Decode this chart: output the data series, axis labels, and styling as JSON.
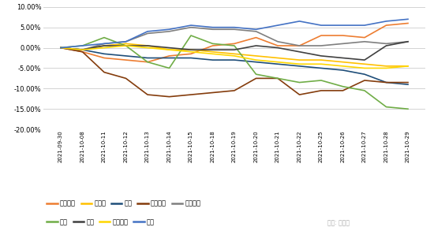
{
  "dates": [
    "2021-09-30",
    "2021-10-08",
    "2021-10-11",
    "2021-10-12",
    "2021-10-13",
    "2021-10-14",
    "2021-10-15",
    "2021-10-18",
    "2021-10-19",
    "2021-10-20",
    "2021-10-21",
    "2021-10-22",
    "2021-10-25",
    "2021-10-26",
    "2021-10-27",
    "2021-10-28",
    "2021-10-29"
  ],
  "series": [
    {
      "name": "电力设备",
      "color": "#ED7D31",
      "values": [
        0.0,
        -1.0,
        -2.5,
        -3.0,
        -3.5,
        -2.0,
        -1.5,
        0.5,
        1.0,
        2.5,
        0.5,
        0.5,
        3.0,
        3.0,
        2.5,
        5.5,
        6.0
      ]
    },
    {
      "name": "房地产",
      "color": "#FFC000",
      "values": [
        0.0,
        -0.5,
        0.5,
        1.0,
        0.5,
        -0.5,
        -0.5,
        -1.0,
        -1.5,
        -2.0,
        -2.5,
        -3.0,
        -3.0,
        -3.5,
        -4.0,
        -4.5,
        -4.5
      ]
    },
    {
      "name": "钢铁",
      "color": "#1F4E79",
      "values": [
        0.0,
        -0.5,
        -1.5,
        -2.0,
        -2.5,
        -2.5,
        -2.5,
        -3.0,
        -3.0,
        -3.5,
        -4.0,
        -4.5,
        -5.0,
        -5.5,
        -6.5,
        -8.5,
        -9.0
      ]
    },
    {
      "name": "公用事业",
      "color": "#843C0C",
      "values": [
        0.0,
        -1.0,
        -6.0,
        -7.5,
        -11.5,
        -12.0,
        -11.5,
        -11.0,
        -10.5,
        -7.5,
        -7.5,
        -11.5,
        -10.5,
        -10.5,
        -8.0,
        -8.5,
        -8.5
      ]
    },
    {
      "name": "国防军工",
      "color": "#7F7F7F",
      "values": [
        0.0,
        -0.5,
        1.0,
        1.5,
        3.5,
        4.0,
        5.0,
        4.5,
        4.5,
        4.0,
        1.5,
        0.5,
        0.5,
        1.0,
        1.5,
        1.0,
        1.5
      ]
    },
    {
      "name": "煤炭",
      "color": "#70AD47",
      "values": [
        0.0,
        0.5,
        2.5,
        0.5,
        -3.5,
        -5.0,
        3.0,
        1.0,
        0.5,
        -6.5,
        -7.5,
        -8.5,
        -8.0,
        -9.5,
        -10.5,
        -14.5,
        -15.0
      ]
    },
    {
      "name": "汽车",
      "color": "#404040",
      "values": [
        0.0,
        -0.5,
        0.5,
        0.5,
        0.5,
        0.0,
        -0.5,
        -0.5,
        -0.5,
        0.5,
        0.0,
        -1.0,
        -2.0,
        -2.5,
        -3.0,
        0.5,
        1.5
      ]
    },
    {
      "name": "医药生物",
      "color": "#FFD700",
      "values": [
        0.0,
        -0.5,
        0.0,
        0.5,
        0.0,
        -0.5,
        -1.0,
        -1.5,
        -2.0,
        -3.0,
        -3.5,
        -4.0,
        -4.0,
        -4.5,
        -5.0,
        -5.0,
        -4.5
      ]
    },
    {
      "name": "银行",
      "color": "#4472C4",
      "values": [
        0.0,
        0.5,
        1.0,
        1.5,
        4.0,
        4.5,
        5.5,
        5.0,
        5.0,
        4.5,
        5.5,
        6.5,
        5.5,
        5.5,
        5.5,
        6.5,
        7.0
      ]
    }
  ],
  "ylim": [
    -20.0,
    10.0
  ],
  "yticks": [
    10.0,
    5.0,
    0.0,
    -5.0,
    -10.0,
    -15.0,
    -20.0
  ],
  "background_color": "#ffffff",
  "grid_color": "#d3d3d3",
  "legend_row1": [
    "电力设备",
    "房地产",
    "钢铁",
    "公用事业",
    "国防军工"
  ],
  "legend_row2": [
    "煤炭",
    "汽车",
    "医药生物",
    "银行"
  ],
  "watermark": "雪球: 火富牛",
  "line_width": 1.2
}
